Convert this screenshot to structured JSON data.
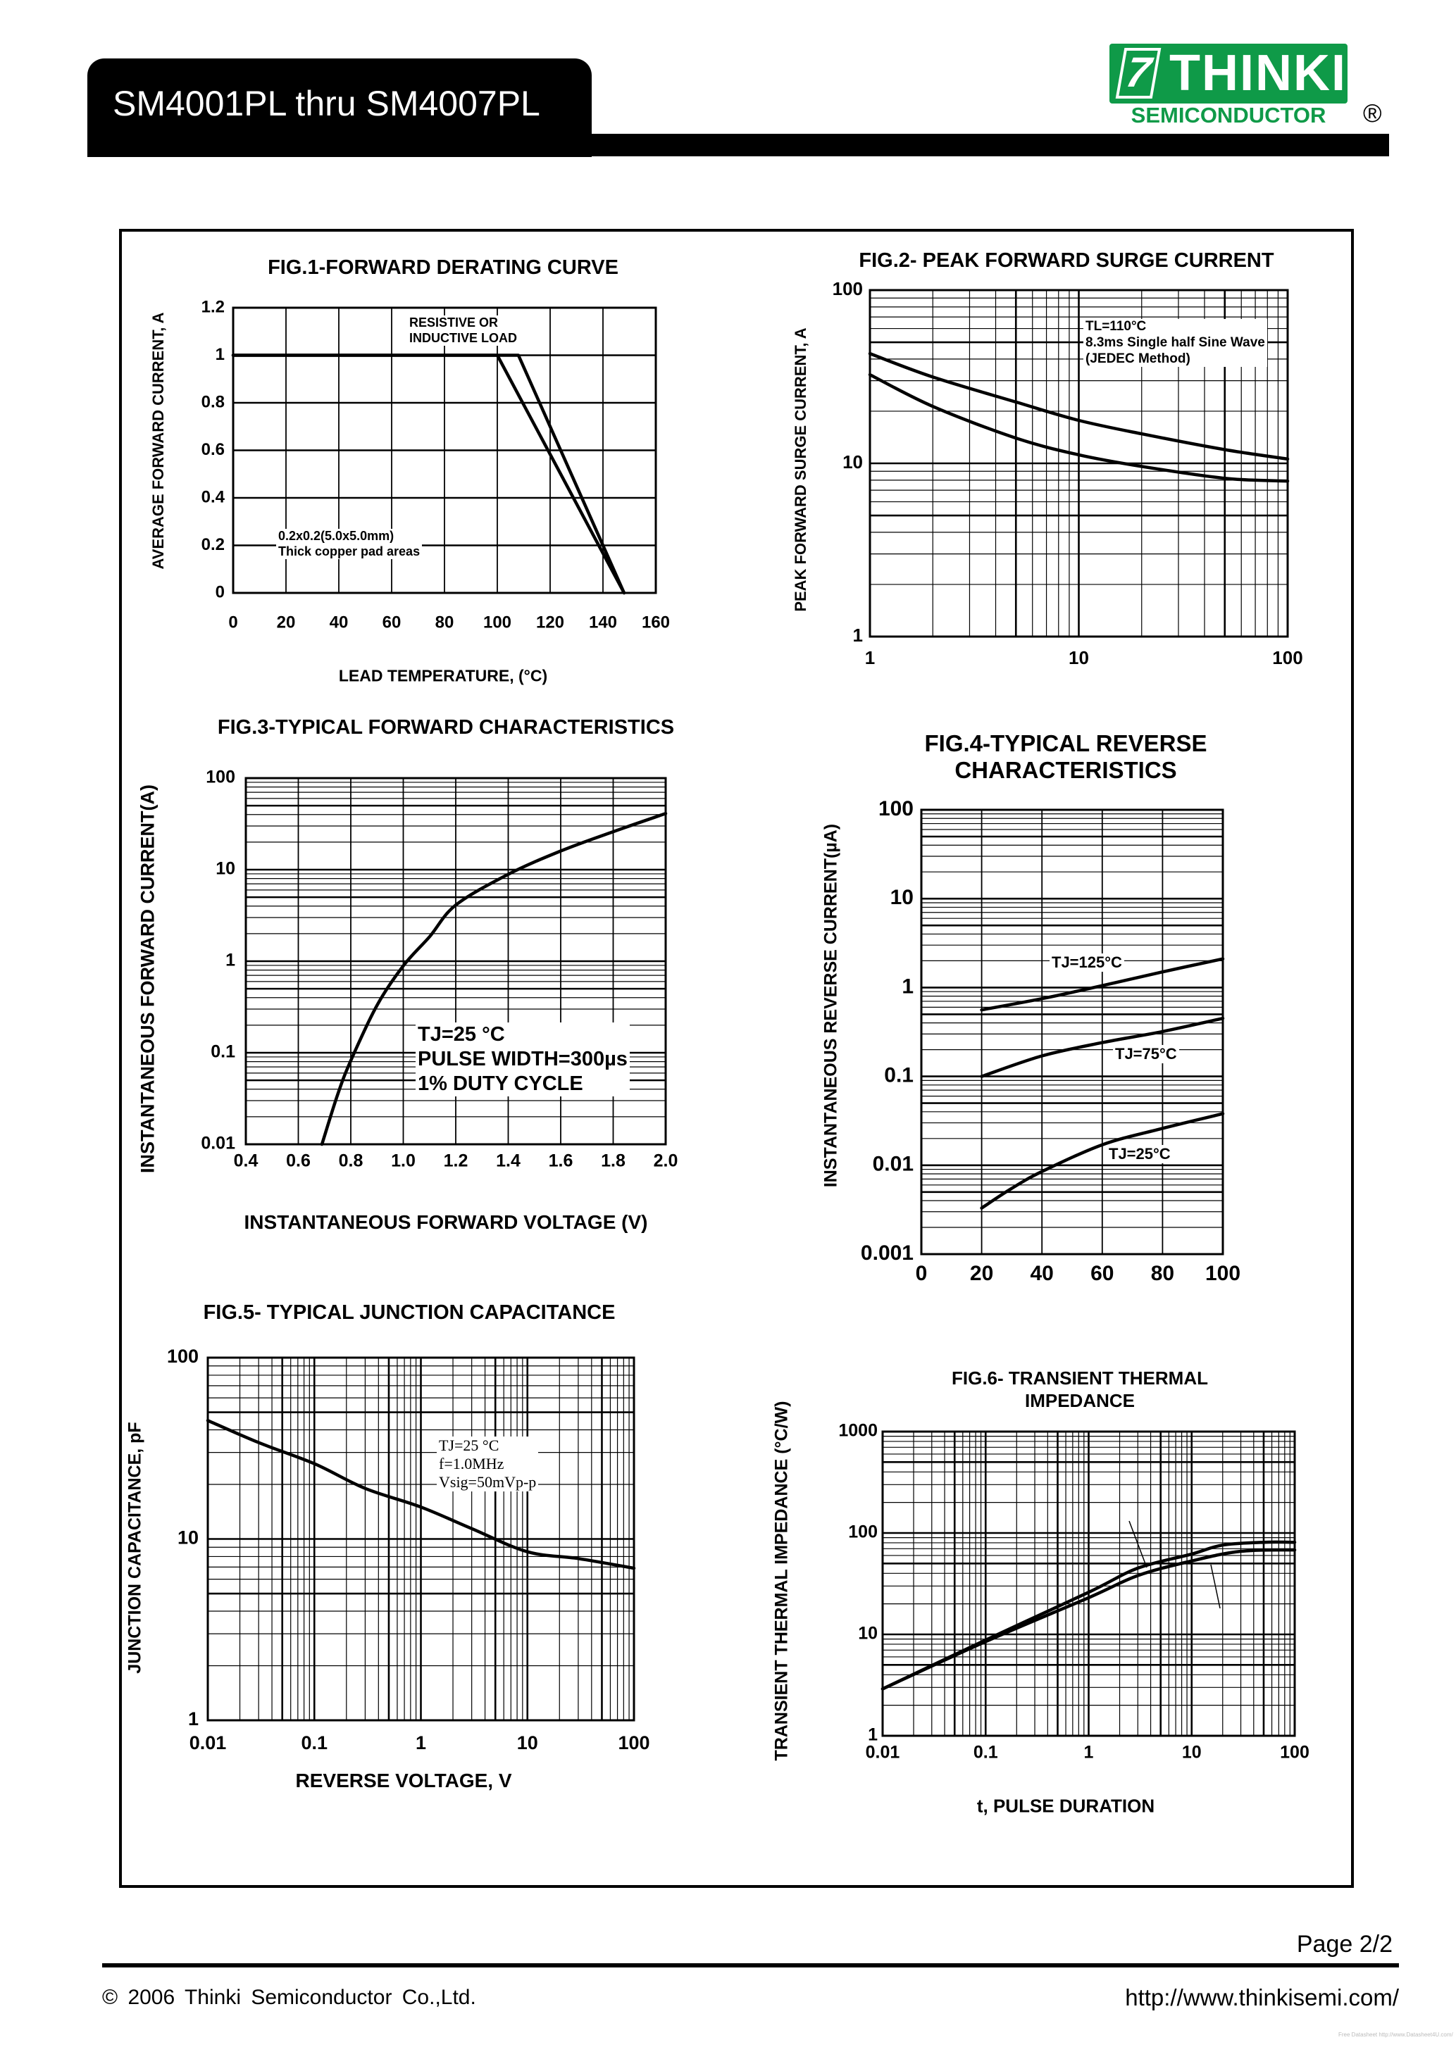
{
  "header": {
    "title": "SM4001PL thru SM4007PL"
  },
  "logo": {
    "mark": "7",
    "brand": "THINKI",
    "sub": "SEMICONDUCTOR",
    "registered": "®",
    "color": "#0f9a48"
  },
  "footer": {
    "page": "Page 2/2",
    "copyright": "© 2006  Thinki  Semiconductor  Co.,Ltd.",
    "url": "http://www.thinkisemi.com/",
    "watermark": "Free Datasheet http://www.Datasheet4U.com/"
  },
  "chart_data": [
    {
      "type": "line",
      "title": "FIG.1-FORWARD DERATING CURVE",
      "xlabel": "LEAD TEMPERATURE, (°C)",
      "ylabel": "AVERAGE FORWARD CURRENT, A",
      "x_scale": "linear",
      "y_scale": "linear",
      "xlim": [
        0,
        160
      ],
      "ylim": [
        0,
        1.2
      ],
      "grid": true,
      "x_ticks": [
        "0",
        "20",
        "40",
        "60",
        "80",
        "100",
        "120",
        "140",
        "160"
      ],
      "y_ticks": [
        "0",
        "0.2",
        "0.4",
        "0.6",
        "0.8",
        "1",
        "1.2"
      ],
      "series": [
        {
          "x": [
            0,
            100,
            148
          ],
          "y": [
            1,
            1,
            0
          ]
        },
        {
          "x": [
            0,
            108,
            148
          ],
          "y": [
            1,
            1,
            0
          ]
        }
      ],
      "annotations": [
        [
          "RESISTIVE OR",
          "INDUCTIVE LOAD"
        ],
        [
          "0.2x0.2(5.0x5.0mm)",
          "Thick copper pad areas"
        ]
      ]
    },
    {
      "type": "line",
      "title": "FIG.2- PEAK FORWARD SURGE CURRENT",
      "xlabel": "",
      "ylabel": "PEAK FORWARD SURGE CURRENT, A",
      "x_scale": "log",
      "y_scale": "log",
      "xlim": [
        1,
        100
      ],
      "ylim": [
        1,
        100
      ],
      "grid": true,
      "x_ticks": [
        "1",
        "10",
        "100"
      ],
      "y_ticks": [
        "1",
        "10",
        "100"
      ],
      "series": [
        {
          "x": [
            1,
            2,
            5,
            10,
            20,
            50,
            100
          ],
          "y": [
            43,
            31.5,
            22.6,
            17.7,
            14.8,
            12,
            10.6
          ]
        },
        {
          "x": [
            1,
            2,
            5,
            10,
            20,
            50,
            100
          ],
          "y": [
            32.5,
            21.3,
            14,
            11.2,
            9.6,
            8.2,
            7.9
          ]
        }
      ],
      "annotations": [
        [
          "TL=110°C",
          "8.3ms Single half Sine Wave",
          "(JEDEC Method)"
        ]
      ]
    },
    {
      "type": "line",
      "title": "FIG.3-TYPICAL FORWARD CHARACTERISTICS",
      "xlabel": "INSTANTANEOUS FORWARD VOLTAGE (V)",
      "ylabel": "INSTANTANEOUS FORWARD CURRENT(A)",
      "x_scale": "linear",
      "y_scale": "log",
      "xlim": [
        0.4,
        2.0
      ],
      "ylim": [
        0.01,
        100
      ],
      "grid": true,
      "x_ticks": [
        "0.4",
        "0.6",
        "0.8",
        "1.0",
        "1.2",
        "1.4",
        "1.6",
        "1.8",
        "2.0"
      ],
      "y_ticks": [
        "0.01",
        "0.1",
        "1",
        "10",
        "100"
      ],
      "series": [
        {
          "x": [
            0.69,
            0.75,
            0.8,
            0.9,
            1.0,
            1.1,
            1.2,
            1.4,
            1.6,
            1.8,
            2.0
          ],
          "y": [
            0.01,
            0.035,
            0.082,
            0.33,
            0.89,
            1.85,
            4.1,
            8.9,
            16,
            26,
            41
          ]
        }
      ],
      "annotations": [
        [
          "TJ=25 °C",
          "PULSE WIDTH=300µs",
          "1% DUTY CYCLE"
        ]
      ]
    },
    {
      "type": "line",
      "title": "FIG.4-TYPICAL REVERSE CHARACTERISTICS",
      "title_lines": [
        "FIG.4-TYPICAL REVERSE",
        "CHARACTERISTICS"
      ],
      "xlabel": "",
      "ylabel": "INSTANTANEOUS REVERSE CURRENT(µA)",
      "x_scale": "linear",
      "y_scale": "log",
      "xlim": [
        0,
        100
      ],
      "ylim": [
        0.001,
        100
      ],
      "grid": true,
      "x_ticks": [
        "0",
        "20",
        "40",
        "60",
        "80",
        "100"
      ],
      "y_ticks": [
        "0.001",
        "0.01",
        "0.1",
        "1",
        "10",
        "100"
      ],
      "series": [
        {
          "name": "TJ=125°C",
          "x": [
            20,
            40,
            60,
            80,
            100
          ],
          "y": [
            0.56,
            0.75,
            1.05,
            1.5,
            2.1
          ]
        },
        {
          "name": "TJ=75°C",
          "x": [
            20,
            40,
            60,
            80,
            100
          ],
          "y": [
            0.1,
            0.17,
            0.24,
            0.32,
            0.45
          ]
        },
        {
          "name": "TJ=25°C",
          "x": [
            20,
            30,
            40,
            60,
            80,
            100
          ],
          "y": [
            0.0033,
            0.0055,
            0.0085,
            0.017,
            0.026,
            0.038
          ]
        }
      ]
    },
    {
      "type": "line",
      "title": "FIG.5- TYPICAL JUNCTION CAPACITANCE",
      "xlabel": "REVERSE VOLTAGE, V",
      "ylabel": "JUNCTION CAPACITANCE, pF",
      "x_scale": "log",
      "y_scale": "log",
      "xlim": [
        0.01,
        100
      ],
      "ylim": [
        1,
        100
      ],
      "grid": true,
      "x_ticks": [
        "0.01",
        "0.1",
        "1",
        "10",
        "100"
      ],
      "y_ticks": [
        "1",
        "10",
        "100"
      ],
      "series": [
        {
          "x": [
            0.01,
            0.03,
            0.1,
            0.3,
            1,
            3,
            10,
            30,
            100
          ],
          "y": [
            45,
            34,
            26,
            19,
            15,
            11.4,
            8.5,
            7.8,
            6.9
          ]
        }
      ],
      "annotations": [
        [
          "TJ=25 °C",
          "f=1.0MHz",
          "Vsig=50mVp-p"
        ]
      ]
    },
    {
      "type": "line",
      "title": "FIG.6- TRANSIENT THERMAL IMPEDANCE",
      "title_lines": [
        "FIG.6- TRANSIENT THERMAL",
        "IMPEDANCE"
      ],
      "xlabel": "t, PULSE DURATION",
      "ylabel": "TRANSIENT THERMAL IMPEDANCE  (°C/W)",
      "x_scale": "log",
      "y_scale": "log",
      "xlim": [
        0.01,
        100
      ],
      "ylim": [
        1,
        1000
      ],
      "grid": true,
      "x_ticks": [
        "0.01",
        "0.1",
        "1",
        "10",
        "100"
      ],
      "y_ticks": [
        "1",
        "10",
        "100",
        "1000"
      ],
      "series": [
        {
          "x": [
            0.01,
            0.1,
            1,
            3,
            10,
            20,
            50,
            100
          ],
          "y": [
            2.9,
            8.8,
            26,
            45,
            62,
            76,
            81,
            81
          ]
        },
        {
          "x": [
            0.01,
            0.1,
            1,
            3,
            10,
            30,
            100
          ],
          "y": [
            2.9,
            8.5,
            23,
            38,
            53,
            66,
            68
          ]
        }
      ]
    }
  ]
}
